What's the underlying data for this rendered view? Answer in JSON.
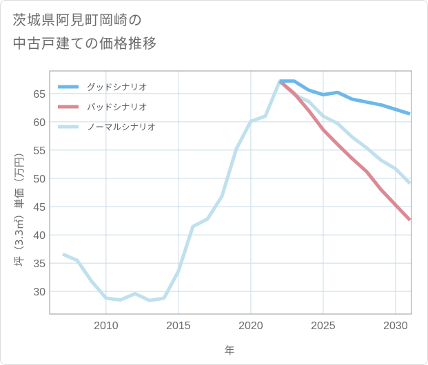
{
  "title": {
    "line1": "茨城県阿見町岡崎の",
    "line2": "中古戸建ての価格推移"
  },
  "colors": {
    "good": "#6cb8ea",
    "bad": "#db8a94",
    "normal": "#bfe0ed",
    "grid": "#c9dbe6",
    "frame": "#999999"
  },
  "chart_data": {
    "type": "line",
    "xlabel": "年",
    "ylabel": "坪（3.3㎡）単価（万円）",
    "xlim": [
      2006.1,
      2031.1
    ],
    "ylim": [
      26,
      69
    ],
    "xticks": [
      2010,
      2015,
      2020,
      2025,
      2030
    ],
    "yticks": [
      30,
      35,
      40,
      45,
      50,
      55,
      60,
      65
    ],
    "grid": true,
    "legend_position": "top-left",
    "series": [
      {
        "name": "グッドシナリオ",
        "color": "#6cb8ea",
        "x": [
          2022,
          2023,
          2024,
          2025,
          2026,
          2027,
          2028,
          2029,
          2030,
          2031
        ],
        "y": [
          67.2,
          67.2,
          65.6,
          64.8,
          65.2,
          64.0,
          63.5,
          63.0,
          62.2,
          61.4
        ]
      },
      {
        "name": "バッドシナリオ",
        "color": "#db8a94",
        "x": [
          2022,
          2023,
          2024,
          2025,
          2026,
          2027,
          2028,
          2029,
          2030,
          2031
        ],
        "y": [
          67.2,
          65.0,
          62.0,
          58.6,
          56.0,
          53.5,
          51.2,
          48.0,
          45.3,
          42.6
        ]
      },
      {
        "name": "ノーマルシナリオ",
        "color": "#bfe0ed",
        "x": [
          2007,
          2008,
          2009,
          2010,
          2011,
          2012,
          2013,
          2014,
          2015,
          2016,
          2017,
          2018,
          2019,
          2020,
          2021,
          2022,
          2023,
          2024,
          2025,
          2026,
          2027,
          2028,
          2029,
          2030,
          2031
        ],
        "y": [
          36.6,
          35.5,
          31.8,
          28.8,
          28.5,
          29.6,
          28.4,
          28.8,
          33.6,
          41.5,
          42.8,
          46.8,
          55.2,
          60.1,
          61.0,
          67.2,
          64.8,
          63.6,
          61.0,
          59.7,
          57.3,
          55.4,
          53.2,
          51.7,
          49.1
        ]
      }
    ]
  }
}
